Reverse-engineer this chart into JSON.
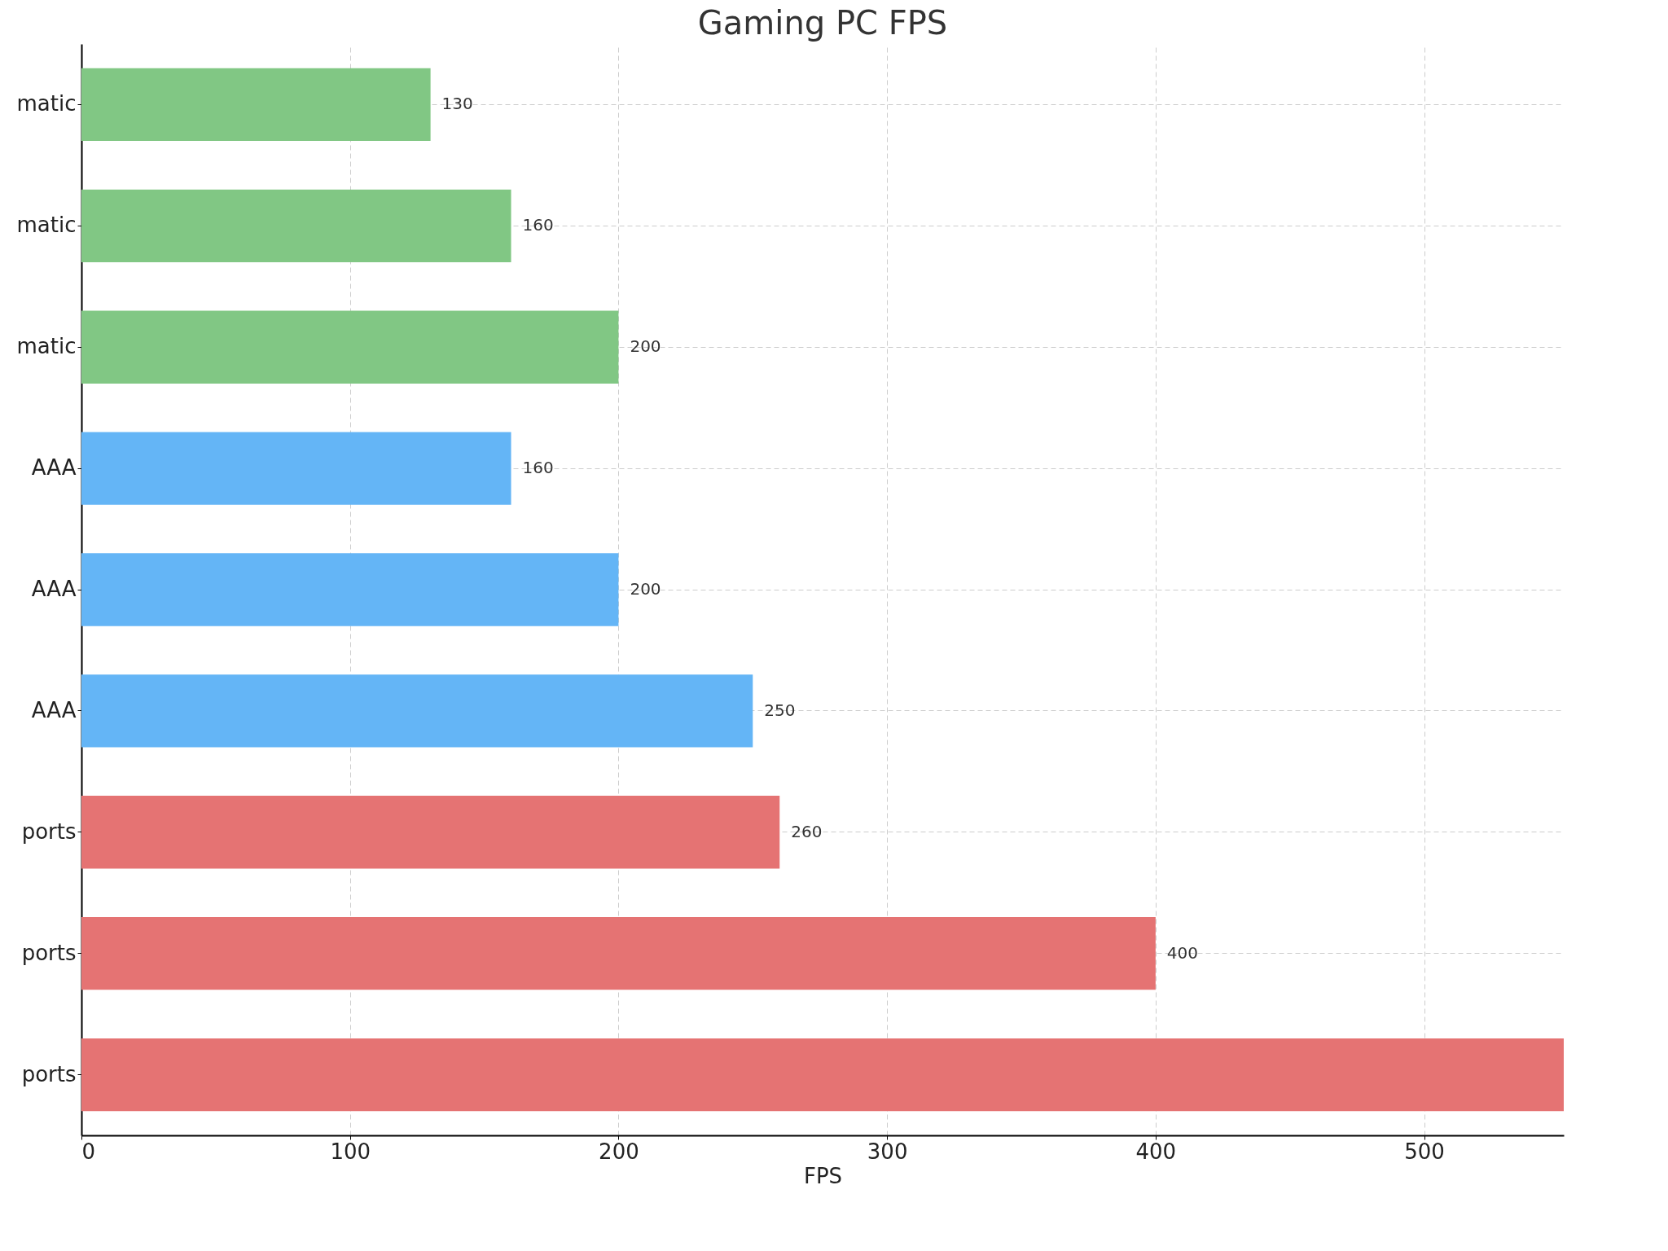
{
  "chart_data": {
    "type": "bar",
    "orientation": "horizontal",
    "title": "Gaming PC FPS",
    "xlabel": "FPS",
    "categories": [
      "matic",
      "matic",
      "matic",
      "AAA",
      "AAA",
      "AAA",
      "ports",
      "ports",
      "ports"
    ],
    "values": [
      130,
      160,
      200,
      160,
      200,
      250,
      260,
      400,
      552
    ],
    "value_labels": [
      "130",
      "160",
      "200",
      "160",
      "200",
      "250",
      "260",
      "400",
      null
    ],
    "colors": [
      "#81c784",
      "#81c784",
      "#81c784",
      "#64b5f6",
      "#64b5f6",
      "#64b5f6",
      "#e57373",
      "#e57373",
      "#e57373"
    ],
    "xlim": [
      0,
      552
    ],
    "xticks": [
      0,
      100,
      200,
      300,
      400,
      500
    ],
    "grid": true
  }
}
